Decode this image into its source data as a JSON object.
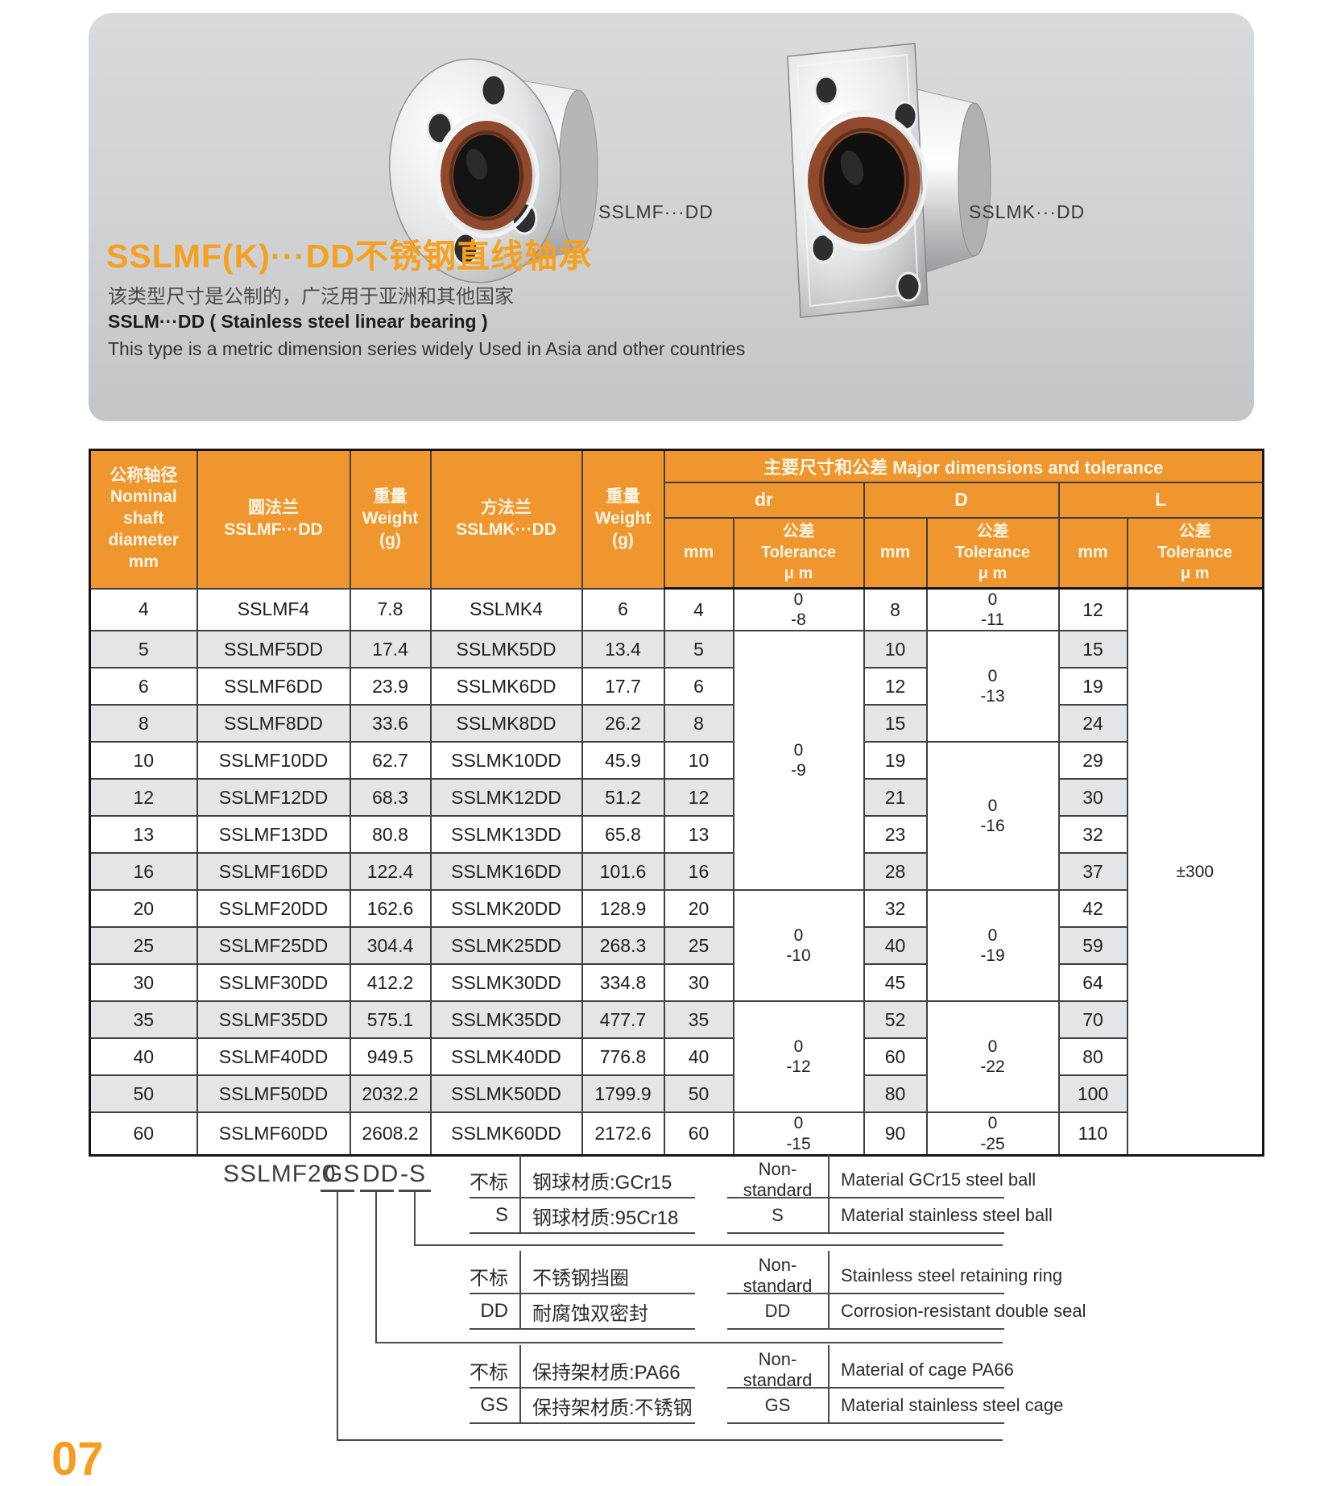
{
  "page": {
    "number": "07"
  },
  "hero": {
    "product1_label": "SSLMF···DD",
    "product2_label": "SSLMK···DD",
    "title": "SSLMF(K)···DD不锈钢直线轴承",
    "subtitle_cn": "该类型尺寸是公制的，广泛用于亚洲和其他国家",
    "subtitle_en_bold": "SSLM···DD ( Stainless steel linear bearing )",
    "subtitle_en": "This type is a metric dimension series widely Used in Asia and other countries"
  },
  "colors": {
    "accent": "#F0962E",
    "stripe": "#E3E5E7",
    "seal_ring": "#8F4A2E"
  },
  "table": {
    "major_header": "主要尺寸和公差  Major dimensions and tolerance",
    "group_headers": [
      "dr",
      "D",
      "L"
    ],
    "sub_mm": "mm",
    "sub_tol": [
      "公差",
      "Tolerance",
      "μ m"
    ],
    "left_headers": [
      [
        "公称轴径",
        "Nominal",
        "shaft",
        "diameter",
        "mm"
      ],
      [
        "圆法兰",
        "SSLMF···DD"
      ],
      [
        "重量",
        "Weight",
        "(g)"
      ],
      [
        "方法兰",
        "SSLMK···DD"
      ],
      [
        "重量",
        "Weight",
        "(g)"
      ]
    ],
    "rows": [
      {
        "shaft": "4",
        "f": "SSLMF4",
        "fw": "7.8",
        "k": "SSLMK4",
        "kw": "6",
        "dr": "4",
        "D": "8",
        "L": "12"
      },
      {
        "shaft": "5",
        "f": "SSLMF5DD",
        "fw": "17.4",
        "k": "SSLMK5DD",
        "kw": "13.4",
        "dr": "5",
        "D": "10",
        "L": "15"
      },
      {
        "shaft": "6",
        "f": "SSLMF6DD",
        "fw": "23.9",
        "k": "SSLMK6DD",
        "kw": "17.7",
        "dr": "6",
        "D": "12",
        "L": "19"
      },
      {
        "shaft": "8",
        "f": "SSLMF8DD",
        "fw": "33.6",
        "k": "SSLMK8DD",
        "kw": "26.2",
        "dr": "8",
        "D": "15",
        "L": "24"
      },
      {
        "shaft": "10",
        "f": "SSLMF10DD",
        "fw": "62.7",
        "k": "SSLMK10DD",
        "kw": "45.9",
        "dr": "10",
        "D": "19",
        "L": "29"
      },
      {
        "shaft": "12",
        "f": "SSLMF12DD",
        "fw": "68.3",
        "k": "SSLMK12DD",
        "kw": "51.2",
        "dr": "12",
        "D": "21",
        "L": "30"
      },
      {
        "shaft": "13",
        "f": "SSLMF13DD",
        "fw": "80.8",
        "k": "SSLMK13DD",
        "kw": "65.8",
        "dr": "13",
        "D": "23",
        "L": "32"
      },
      {
        "shaft": "16",
        "f": "SSLMF16DD",
        "fw": "122.4",
        "k": "SSLMK16DD",
        "kw": "101.6",
        "dr": "16",
        "D": "28",
        "L": "37"
      },
      {
        "shaft": "20",
        "f": "SSLMF20DD",
        "fw": "162.6",
        "k": "SSLMK20DD",
        "kw": "128.9",
        "dr": "20",
        "D": "32",
        "L": "42"
      },
      {
        "shaft": "25",
        "f": "SSLMF25DD",
        "fw": "304.4",
        "k": "SSLMK25DD",
        "kw": "268.3",
        "dr": "25",
        "D": "40",
        "L": "59"
      },
      {
        "shaft": "30",
        "f": "SSLMF30DD",
        "fw": "412.2",
        "k": "SSLMK30DD",
        "kw": "334.8",
        "dr": "30",
        "D": "45",
        "L": "64"
      },
      {
        "shaft": "35",
        "f": "SSLMF35DD",
        "fw": "575.1",
        "k": "SSLMK35DD",
        "kw": "477.7",
        "dr": "35",
        "D": "52",
        "L": "70"
      },
      {
        "shaft": "40",
        "f": "SSLMF40DD",
        "fw": "949.5",
        "k": "SSLMK40DD",
        "kw": "776.8",
        "dr": "40",
        "D": "60",
        "L": "80"
      },
      {
        "shaft": "50",
        "f": "SSLMF50DD",
        "fw": "2032.2",
        "k": "SSLMK50DD",
        "kw": "1799.9",
        "dr": "50",
        "D": "80",
        "L": "100"
      },
      {
        "shaft": "60",
        "f": "SSLMF60DD",
        "fw": "2608.2",
        "k": "SSLMK60DD",
        "kw": "2172.6",
        "dr": "60",
        "D": "90",
        "L": "110"
      }
    ],
    "dr_tolerance": [
      {
        "from": 0,
        "span": 1,
        "lines": [
          "0",
          "-8"
        ]
      },
      {
        "from": 1,
        "span": 7,
        "lines": [
          "0",
          "-9"
        ]
      },
      {
        "from": 8,
        "span": 3,
        "lines": [
          "0",
          "-10"
        ]
      },
      {
        "from": 11,
        "span": 3,
        "lines": [
          "0",
          "-12"
        ]
      },
      {
        "from": 14,
        "span": 1,
        "lines": [
          "0",
          "-15"
        ]
      }
    ],
    "d_tolerance": [
      {
        "from": 0,
        "span": 1,
        "lines": [
          "0",
          "-11"
        ]
      },
      {
        "from": 1,
        "span": 3,
        "lines": [
          "0",
          "-13"
        ]
      },
      {
        "from": 4,
        "span": 4,
        "lines": [
          "0",
          "-16"
        ]
      },
      {
        "from": 8,
        "span": 3,
        "lines": [
          "0",
          "-19"
        ]
      },
      {
        "from": 11,
        "span": 3,
        "lines": [
          "0",
          "-22"
        ]
      },
      {
        "from": 14,
        "span": 1,
        "lines": [
          "0",
          "-25"
        ]
      }
    ],
    "l_tolerance": [
      {
        "from": 0,
        "span": 15,
        "lines": [
          "±300"
        ]
      }
    ]
  },
  "part_code": {
    "base": "SSLMF20",
    "codes": [
      "GS",
      "DD",
      "-S"
    ]
  },
  "legend": [
    {
      "cn": [
        [
          "不标",
          "钢球材质:GCr15"
        ],
        [
          "S",
          "钢球材质:95Cr18"
        ]
      ],
      "en": [
        [
          "Non-standard",
          "Material GCr15  steel ball"
        ],
        [
          "S",
          "Material  stainless steel  ball"
        ]
      ]
    },
    {
      "cn": [
        [
          "不标",
          "不锈钢挡圈"
        ],
        [
          "DD",
          "耐腐蚀双密封"
        ]
      ],
      "en": [
        [
          "Non-standard",
          "Stainless steel retaining ring"
        ],
        [
          "DD",
          "Corrosion-resistant double seal"
        ]
      ]
    },
    {
      "cn": [
        [
          "不标",
          "保持架材质:PA66"
        ],
        [
          "GS",
          "保持架材质:不锈钢"
        ]
      ],
      "en": [
        [
          "Non-standard",
          "Material  of  cage  PA66"
        ],
        [
          "GS",
          "Material stainless  steel cage"
        ]
      ]
    }
  ]
}
